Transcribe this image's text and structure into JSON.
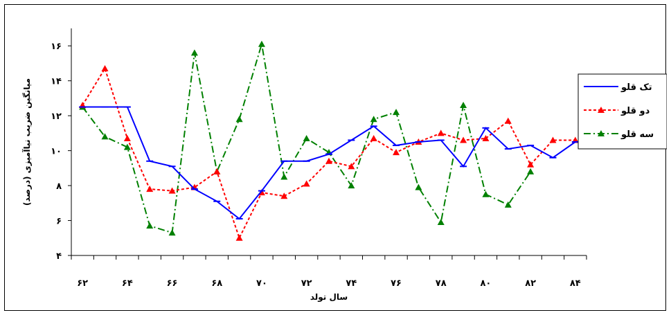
{
  "chart_data": {
    "type": "line",
    "title": "",
    "xlabel": "سال تولد",
    "ylabel": "میانگین ضریب نیاآمیزی (درصد)",
    "x": [
      62,
      63,
      64,
      65,
      66,
      67,
      68,
      69,
      70,
      71,
      72,
      73,
      74,
      75,
      76,
      77,
      78,
      79,
      80,
      81,
      82,
      83,
      84
    ],
    "x_ticks": [
      62,
      64,
      66,
      68,
      70,
      72,
      74,
      76,
      78,
      80,
      82,
      84
    ],
    "x_tick_labels": [
      "۶۲",
      "۶۴",
      "۶۶",
      "۶۸",
      "۷۰",
      "۷۲",
      "۷۴",
      "۷۶",
      "۷۸",
      "۸۰",
      "۸۲",
      "۸۴"
    ],
    "xlim": [
      61.5,
      84.5
    ],
    "y_ticks": [
      4,
      6,
      8,
      10,
      12,
      14,
      16
    ],
    "y_tick_labels": [
      "۴",
      "۶",
      "۸",
      "۱۰",
      "۱۲",
      "۱۴",
      "۱۶"
    ],
    "ylim": [
      4,
      17
    ],
    "grid": false,
    "legend_position": "right",
    "series": [
      {
        "name": "تک قلو",
        "color": "#0000ff",
        "dash": "solid",
        "marker": "dash",
        "values": [
          12.5,
          12.5,
          12.5,
          9.4,
          9.1,
          7.8,
          7.1,
          6.1,
          7.7,
          9.4,
          9.4,
          9.8,
          10.6,
          11.4,
          10.3,
          10.5,
          10.6,
          9.1,
          11.3,
          10.1,
          10.3,
          9.6,
          10.5
        ]
      },
      {
        "name": "دو قلو",
        "color": "#ff0000",
        "dash": "dotted",
        "marker": "triangle",
        "values": [
          12.6,
          14.7,
          10.7,
          7.8,
          7.7,
          7.9,
          8.8,
          5.0,
          7.6,
          7.4,
          8.1,
          9.4,
          9.1,
          10.7,
          9.9,
          10.5,
          11.0,
          10.6,
          10.7,
          11.7,
          9.2,
          10.6,
          10.6
        ]
      },
      {
        "name": "سه قلو",
        "color": "#008000",
        "dash": "dashdot",
        "marker": "triangle",
        "values": [
          12.5,
          10.8,
          10.2,
          5.7,
          5.3,
          15.6,
          8.8,
          11.8,
          16.1,
          8.5,
          10.7,
          9.9,
          8.0,
          11.8,
          12.2,
          7.9,
          5.9,
          12.6,
          7.5,
          6.9,
          8.8,
          null,
          null
        ]
      }
    ]
  }
}
